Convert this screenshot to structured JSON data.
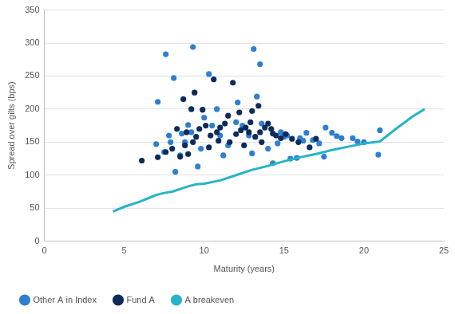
{
  "chart_data": {
    "type": "scatter",
    "x_label": "Maturity (years)",
    "y_label": "Spread over gilts (bps)",
    "xlim": [
      0,
      25
    ],
    "xticks": [
      0,
      5,
      10,
      15,
      20,
      25
    ],
    "ylim": [
      0,
      350
    ],
    "yticks": [
      0,
      50,
      100,
      150,
      200,
      250,
      300,
      350
    ],
    "grid": true,
    "legend": "bottom",
    "series": [
      {
        "name": "Other A in Index",
        "color": "#2f7fd1",
        "marker": "circle",
        "x": [
          7.6,
          9.3,
          13.1,
          10.3,
          13.5,
          8.1,
          7.1,
          13.3,
          12.1,
          7.0,
          7.5,
          7.8,
          8.2,
          8.5,
          8.8,
          9.0,
          9.2,
          9.6,
          10.0,
          10.5,
          11.0,
          11.5,
          12.0,
          12.4,
          13.0,
          13.6,
          14.0,
          14.3,
          14.6,
          15.0,
          15.4,
          15.8,
          16.2,
          16.4,
          16.8,
          17.2,
          17.5,
          17.6,
          18.0,
          18.3,
          18.6,
          19.3,
          19.6,
          20.0,
          20.9,
          21.0,
          11.2,
          10.8,
          9.8,
          8.6,
          12.8,
          14.8,
          15.2,
          16.0,
          7.9
        ],
        "values": [
          283,
          294,
          291,
          253,
          268,
          247,
          211,
          219,
          210,
          147,
          135,
          160,
          105,
          130,
          150,
          176,
          165,
          113,
          187,
          175,
          160,
          145,
          180,
          175,
          133,
          178,
          140,
          118,
          148,
          158,
          125,
          126,
          152,
          164,
          153,
          148,
          128,
          172,
          164,
          159,
          156,
          156,
          151,
          150,
          131,
          168,
          130,
          200,
          140,
          163,
          160,
          165,
          160,
          156,
          150
        ]
      },
      {
        "name": "Fund A",
        "color": "#0c2a5c",
        "marker": "circle",
        "x": [
          6.1,
          7.1,
          8.0,
          8.5,
          8.7,
          9.2,
          9.4,
          9.9,
          10.6,
          11.8,
          12.2,
          13.0,
          13.4,
          8.3,
          8.8,
          9.0,
          9.5,
          9.7,
          10.1,
          10.4,
          10.8,
          11.0,
          11.3,
          11.6,
          12.0,
          12.3,
          12.6,
          12.9,
          13.2,
          13.5,
          13.8,
          14.0,
          14.2,
          14.5,
          14.8,
          15.1,
          15.5,
          15.9,
          16.6,
          17.0,
          10.3,
          11.5,
          9.3,
          8.9,
          12.5,
          13.6,
          14.3,
          7.6,
          10.9,
          12.8
        ],
        "values": [
          122,
          127,
          140,
          128,
          215,
          200,
          225,
          199,
          245,
          240,
          195,
          197,
          205,
          170,
          145,
          132,
          158,
          170,
          175,
          160,
          165,
          172,
          178,
          150,
          162,
          168,
          172,
          180,
          158,
          165,
          172,
          178,
          170,
          160,
          156,
          162,
          155,
          150,
          142,
          155,
          142,
          190,
          150,
          165,
          145,
          150,
          163,
          135,
          152,
          165
        ]
      },
      {
        "name": "A breakeven",
        "color": "#27b4c6",
        "type": "line",
        "line_style": "solid",
        "x": [
          4.3,
          5,
          6,
          6.8,
          7,
          7.5,
          8,
          9,
          9.5,
          10,
          11,
          12,
          13,
          14,
          15,
          16,
          17,
          18,
          19,
          20,
          21,
          22,
          23,
          23.8
        ],
        "values": [
          45,
          52,
          60,
          68,
          70,
          73,
          75,
          83,
          86,
          87,
          92,
          100,
          108,
          114,
          121,
          127,
          132,
          138,
          143,
          148,
          151,
          170,
          188,
          200
        ]
      }
    ]
  }
}
